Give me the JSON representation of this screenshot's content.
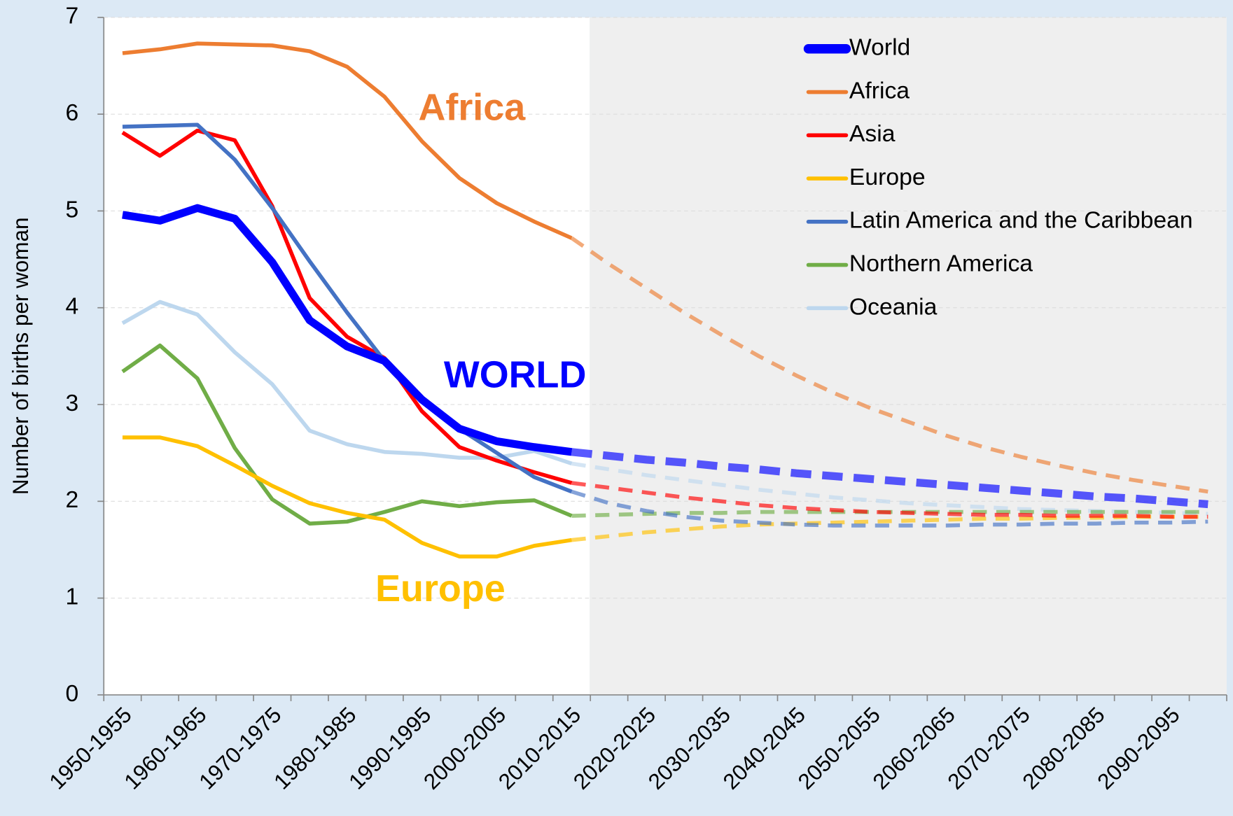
{
  "chart_data": {
    "type": "line",
    "y_label": "Number of births per woman",
    "categories": [
      "1950-1955",
      null,
      "1960-1965",
      null,
      "1970-1975",
      null,
      "1980-1985",
      null,
      "1990-1995",
      null,
      "2000-2005",
      null,
      "2010-2015",
      null,
      "2020-2025",
      null,
      "2030-2035",
      null,
      "2040-2045",
      null,
      "2050-2055",
      null,
      "2060-2065",
      null,
      "2070-2075",
      null,
      "2080-2085",
      null,
      "2090-2095",
      null
    ],
    "ylim": [
      0,
      7
    ],
    "yticks": [
      0,
      1,
      2,
      3,
      4,
      5,
      6,
      7
    ],
    "grid": true,
    "legend": "upper right",
    "series": [
      {
        "name": "World",
        "color": "#0000ff",
        "values": [
          4.96,
          4.9,
          5.03,
          4.92,
          4.47,
          3.87,
          3.6,
          3.45,
          3.05,
          2.75,
          2.62,
          2.56,
          2.51,
          2.47,
          2.43,
          2.4,
          2.36,
          2.33,
          2.29,
          2.26,
          2.23,
          2.2,
          2.17,
          2.14,
          2.11,
          2.08,
          2.05,
          2.03,
          2.0,
          1.97
        ]
      },
      {
        "name": "Africa",
        "color": "#ed7d31",
        "values": [
          6.63,
          6.67,
          6.73,
          6.72,
          6.71,
          6.65,
          6.49,
          6.18,
          5.72,
          5.34,
          5.08,
          4.89,
          4.72,
          4.45,
          4.2,
          3.95,
          3.72,
          3.5,
          3.3,
          3.12,
          2.96,
          2.82,
          2.68,
          2.56,
          2.46,
          2.37,
          2.29,
          2.22,
          2.16,
          2.1
        ]
      },
      {
        "name": "Asia",
        "color": "#ff0000",
        "values": [
          5.81,
          5.57,
          5.83,
          5.73,
          5.05,
          4.1,
          3.7,
          3.48,
          2.93,
          2.56,
          2.42,
          2.3,
          2.19,
          2.14,
          2.09,
          2.04,
          2.0,
          1.96,
          1.93,
          1.91,
          1.89,
          1.88,
          1.87,
          1.86,
          1.86,
          1.85,
          1.85,
          1.85,
          1.84,
          1.84
        ]
      },
      {
        "name": "Europe",
        "color": "#ffc000",
        "values": [
          2.66,
          2.66,
          2.57,
          2.37,
          2.16,
          1.98,
          1.88,
          1.81,
          1.57,
          1.43,
          1.43,
          1.54,
          1.6,
          1.64,
          1.68,
          1.71,
          1.74,
          1.76,
          1.77,
          1.78,
          1.79,
          1.8,
          1.81,
          1.82,
          1.82,
          1.83,
          1.83,
          1.84,
          1.84,
          1.84
        ]
      },
      {
        "name": "Latin America and the Caribbean",
        "color": "#4472c4",
        "values": [
          5.87,
          5.88,
          5.89,
          5.53,
          5.03,
          4.48,
          3.95,
          3.45,
          3.05,
          2.75,
          2.5,
          2.25,
          2.1,
          1.98,
          1.9,
          1.84,
          1.8,
          1.78,
          1.76,
          1.75,
          1.75,
          1.75,
          1.75,
          1.76,
          1.76,
          1.77,
          1.77,
          1.78,
          1.78,
          1.79
        ]
      },
      {
        "name": "Northern America",
        "color": "#70ad47",
        "values": [
          3.34,
          3.61,
          3.27,
          2.55,
          2.02,
          1.77,
          1.79,
          1.89,
          2.0,
          1.95,
          1.99,
          2.01,
          1.85,
          1.86,
          1.87,
          1.88,
          1.88,
          1.89,
          1.89,
          1.89,
          1.89,
          1.89,
          1.89,
          1.89,
          1.89,
          1.89,
          1.89,
          1.89,
          1.89,
          1.89
        ]
      },
      {
        "name": "Oceania",
        "color": "#bdd7ee",
        "values": [
          3.84,
          4.06,
          3.93,
          3.54,
          3.21,
          2.73,
          2.59,
          2.51,
          2.49,
          2.45,
          2.45,
          2.52,
          2.39,
          2.33,
          2.27,
          2.22,
          2.17,
          2.12,
          2.08,
          2.04,
          2.01,
          1.98,
          1.96,
          1.94,
          1.92,
          1.91,
          1.9,
          1.89,
          1.88,
          1.87
        ]
      }
    ],
    "annotations": [
      {
        "text": "Africa",
        "color": "#ed7d31"
      },
      {
        "text": "WORLD",
        "color": "#0000ff"
      },
      {
        "text": "Europe",
        "color": "#ffc000"
      }
    ]
  }
}
